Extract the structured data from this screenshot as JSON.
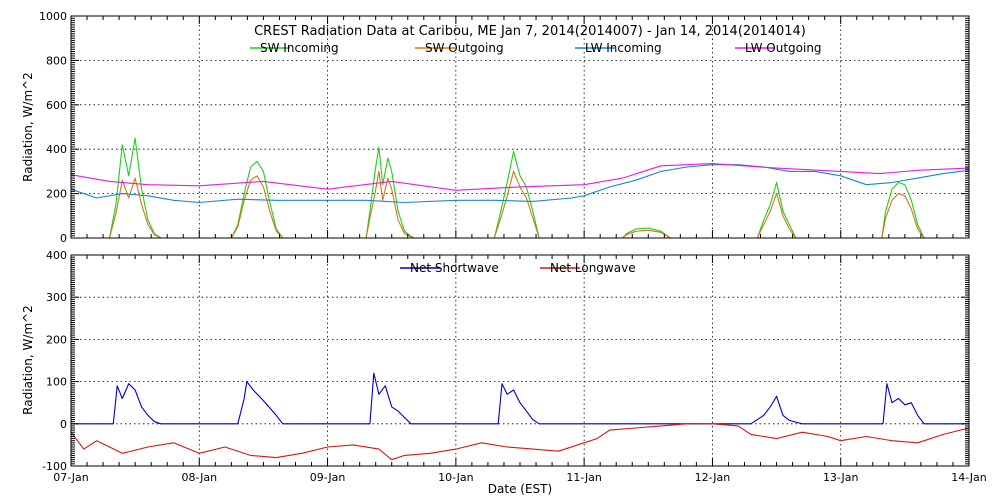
{
  "colors": {
    "sw_incoming": "#22cc22",
    "sw_outgoing": "#d07818",
    "lw_incoming": "#1a88c8",
    "lw_outgoing": "#e020e0",
    "net_shortwave": "#0000c0",
    "net_longwave": "#d01818"
  },
  "chart_data": [
    {
      "type": "line",
      "title": "CREST Radiation Data at Caribou, ME   Jan  7, 2014(2014007) - Jan 14, 2014(2014014)",
      "xlabel": "",
      "ylabel": "Radiation,  W/m^2",
      "xlim": [
        0,
        7
      ],
      "ylim": [
        0,
        1000
      ],
      "yticks": [
        "0",
        "200",
        "400",
        "600",
        "800",
        "1000"
      ],
      "grid": true,
      "legend_placement": "top",
      "series": [
        {
          "name": "SW Incoming",
          "color_key": "sw_incoming",
          "x": [
            0,
            0.3,
            0.35,
            0.4,
            0.45,
            0.5,
            0.55,
            0.6,
            0.65,
            0.7,
            1.0,
            1.25,
            1.3,
            1.35,
            1.4,
            1.45,
            1.5,
            1.55,
            1.6,
            1.65,
            2.0,
            2.3,
            2.33,
            2.37,
            2.4,
            2.43,
            2.47,
            2.5,
            2.55,
            2.6,
            2.67,
            3.0,
            3.3,
            3.35,
            3.4,
            3.45,
            3.5,
            3.55,
            3.6,
            3.65,
            4.0,
            4.3,
            4.33,
            4.4,
            4.5,
            4.6,
            4.67,
            5.0,
            5.35,
            5.4,
            5.45,
            5.5,
            5.55,
            5.6,
            5.65,
            6.0,
            6.32,
            6.35,
            6.4,
            6.45,
            6.5,
            6.55,
            6.6,
            6.65,
            7.0
          ],
          "y": [
            0,
            0,
            150,
            420,
            280,
            450,
            220,
            80,
            20,
            0,
            0,
            0,
            60,
            200,
            320,
            345,
            300,
            160,
            40,
            0,
            0,
            0,
            120,
            300,
            410,
            240,
            360,
            300,
            120,
            30,
            0,
            0,
            0,
            120,
            250,
            390,
            280,
            230,
            120,
            0,
            0,
            0,
            20,
            40,
            45,
            30,
            0,
            0,
            0,
            80,
            150,
            250,
            120,
            60,
            0,
            0,
            0,
            120,
            220,
            250,
            240,
            170,
            60,
            0,
            0
          ]
        },
        {
          "name": "SW Outgoing",
          "color_key": "sw_outgoing",
          "x": [
            0,
            0.3,
            0.35,
            0.4,
            0.45,
            0.5,
            0.55,
            0.6,
            0.65,
            0.7,
            1.0,
            1.25,
            1.3,
            1.35,
            1.4,
            1.45,
            1.5,
            1.55,
            1.6,
            1.65,
            2.0,
            2.3,
            2.33,
            2.37,
            2.4,
            2.43,
            2.47,
            2.5,
            2.55,
            2.6,
            2.67,
            3.0,
            3.3,
            3.35,
            3.4,
            3.45,
            3.5,
            3.55,
            3.6,
            3.65,
            4.0,
            4.3,
            4.33,
            4.4,
            4.5,
            4.6,
            4.67,
            5.0,
            5.35,
            5.4,
            5.45,
            5.5,
            5.55,
            5.6,
            5.65,
            6.0,
            6.32,
            6.35,
            6.4,
            6.45,
            6.5,
            6.55,
            6.6,
            6.65,
            7.0
          ],
          "y": [
            0,
            0,
            110,
            260,
            180,
            270,
            150,
            60,
            15,
            0,
            0,
            0,
            50,
            170,
            260,
            280,
            230,
            120,
            30,
            0,
            0,
            0,
            90,
            200,
            300,
            170,
            270,
            220,
            80,
            20,
            0,
            0,
            0,
            90,
            190,
            300,
            230,
            180,
            90,
            0,
            0,
            0,
            15,
            30,
            35,
            25,
            0,
            0,
            0,
            60,
            120,
            200,
            100,
            40,
            0,
            0,
            0,
            90,
            170,
            200,
            190,
            130,
            40,
            0,
            0
          ]
        },
        {
          "name": "LW Incoming",
          "color_key": "lw_incoming",
          "x": [
            0,
            0.2,
            0.4,
            0.6,
            0.8,
            1.0,
            1.3,
            1.6,
            2.0,
            2.3,
            2.6,
            3.0,
            3.3,
            3.6,
            3.9,
            4.0,
            4.2,
            4.4,
            4.6,
            4.8,
            5.0,
            5.2,
            5.4,
            5.6,
            5.8,
            6.0,
            6.2,
            6.4,
            6.6,
            6.8,
            7.0
          ],
          "y": [
            220,
            180,
            200,
            190,
            170,
            160,
            175,
            170,
            170,
            170,
            160,
            170,
            170,
            165,
            180,
            190,
            230,
            260,
            300,
            320,
            330,
            330,
            320,
            300,
            300,
            280,
            240,
            250,
            270,
            290,
            305
          ]
        },
        {
          "name": "LW Outgoing",
          "color_key": "lw_outgoing",
          "x": [
            0,
            0.3,
            0.6,
            1.0,
            1.5,
            2.0,
            2.5,
            3.0,
            3.5,
            4.0,
            4.3,
            4.6,
            5.0,
            5.5,
            6.0,
            6.3,
            6.6,
            7.0
          ],
          "y": [
            285,
            255,
            240,
            235,
            255,
            220,
            255,
            215,
            230,
            240,
            270,
            325,
            335,
            315,
            300,
            290,
            305,
            315
          ]
        }
      ]
    },
    {
      "type": "line",
      "title": "",
      "xlabel": "Date (EST)",
      "ylabel": "Radiation,  W/m^2",
      "xlim": [
        0,
        7
      ],
      "ylim": [
        -100,
        400
      ],
      "yticks": [
        "-100",
        "0",
        "100",
        "200",
        "300",
        "400"
      ],
      "xticks": [
        "07-Jan",
        "08-Jan",
        "09-Jan",
        "10-Jan",
        "11-Jan",
        "12-Jan",
        "13-Jan",
        "14-Jan"
      ],
      "grid": true,
      "legend_placement": "top",
      "series": [
        {
          "name": "Net Shortwave",
          "color_key": "net_shortwave",
          "x": [
            0,
            0.33,
            0.36,
            0.4,
            0.45,
            0.5,
            0.55,
            0.6,
            0.65,
            0.7,
            1.3,
            1.35,
            1.37,
            1.42,
            1.5,
            1.6,
            1.65,
            2.33,
            2.36,
            2.4,
            2.45,
            2.5,
            2.55,
            2.6,
            2.65,
            3.33,
            3.36,
            3.4,
            3.45,
            3.5,
            3.55,
            3.6,
            3.65,
            4.0,
            5.0,
            5.3,
            5.4,
            5.45,
            5.5,
            5.55,
            5.6,
            5.7,
            6.33,
            6.36,
            6.4,
            6.45,
            6.5,
            6.55,
            6.6,
            6.65,
            7.0
          ],
          "y": [
            0,
            0,
            90,
            60,
            95,
            80,
            40,
            20,
            5,
            0,
            0,
            60,
            100,
            80,
            55,
            20,
            0,
            0,
            120,
            70,
            90,
            40,
            30,
            15,
            0,
            0,
            95,
            70,
            80,
            50,
            30,
            10,
            0,
            0,
            0,
            0,
            20,
            40,
            65,
            20,
            8,
            0,
            0,
            95,
            50,
            60,
            45,
            50,
            20,
            0,
            0
          ]
        },
        {
          "name": "Net Longwave",
          "color_key": "net_longwave",
          "x": [
            0,
            0.1,
            0.2,
            0.4,
            0.6,
            0.8,
            1.0,
            1.2,
            1.4,
            1.6,
            1.8,
            2.0,
            2.2,
            2.4,
            2.5,
            2.6,
            2.8,
            3.0,
            3.2,
            3.4,
            3.6,
            3.8,
            4.0,
            4.1,
            4.2,
            4.4,
            4.6,
            4.8,
            5.0,
            5.2,
            5.3,
            5.5,
            5.7,
            5.9,
            6.0,
            6.2,
            6.4,
            6.6,
            6.8,
            7.0
          ],
          "y": [
            -20,
            -60,
            -40,
            -70,
            -55,
            -45,
            -70,
            -55,
            -75,
            -80,
            -70,
            -55,
            -50,
            -60,
            -85,
            -75,
            -70,
            -60,
            -45,
            -55,
            -60,
            -65,
            -45,
            -35,
            -15,
            -10,
            -5,
            0,
            0,
            -5,
            -25,
            -35,
            -20,
            -30,
            -40,
            -30,
            -40,
            -45,
            -25,
            -10
          ]
        }
      ]
    }
  ]
}
